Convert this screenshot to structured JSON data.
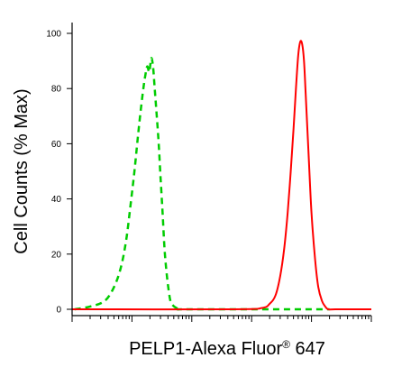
{
  "chart_data": {
    "type": "line",
    "title": "",
    "xlabel": "PELP1-Alexa Fluor",
    "xlabel_superscript": "®",
    "xlabel_suffix": " 647",
    "ylabel": "Cell Counts (% Max)",
    "x_scale": "log",
    "xlim": [
      1,
      100000
    ],
    "ylim": [
      0,
      100
    ],
    "yticks": [
      0,
      20,
      40,
      60,
      80,
      100
    ],
    "ytick_labels": [
      "0",
      "20",
      "40",
      "60",
      "80",
      "100"
    ],
    "xtick_labels": [],
    "grid": false,
    "legend": "none",
    "series": [
      {
        "color": "#00cc00",
        "dash": true,
        "x": [
          1.1,
          2,
          3.5,
          5,
          6.5,
          8,
          9.5,
          11,
          12.5,
          14,
          15.5,
          16.5,
          18,
          19.5,
          21,
          22.5,
          24,
          26,
          28,
          30,
          32.5,
          35,
          38,
          41,
          44,
          48,
          55,
          65,
          80,
          3000,
          20000
        ],
        "y": [
          0,
          1,
          3,
          8,
          15,
          25,
          38,
          50,
          62,
          72,
          80,
          84,
          88,
          86,
          91,
          88,
          80,
          70,
          60,
          48,
          35,
          22,
          13,
          7,
          3,
          1.5,
          0.5,
          0,
          0,
          0,
          0
        ]
      },
      {
        "color": "#ff0000",
        "dash": false,
        "x": [
          1,
          500,
          1500,
          2000,
          2500,
          3000,
          3500,
          4000,
          4500,
          5000,
          5500,
          6000,
          6500,
          7000,
          7500,
          8000,
          9000,
          10000,
          11500,
          13000,
          15000,
          17000,
          19000,
          25000,
          100000
        ],
        "y": [
          0,
          0,
          0.5,
          2,
          5,
          12,
          22,
          35,
          50,
          65,
          80,
          92,
          97,
          96,
          90,
          78,
          55,
          35,
          18,
          8,
          3,
          1,
          0,
          0,
          0
        ]
      }
    ]
  },
  "colors": {
    "axis": "#000000",
    "background": "#ffffff"
  }
}
